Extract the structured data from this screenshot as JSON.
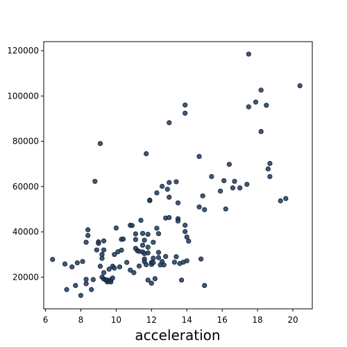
{
  "chart_data": {
    "type": "scatter",
    "title": "",
    "xlabel": "acceleration",
    "ylabel": "",
    "xlim": [
      5.9,
      21.1
    ],
    "ylim": [
      6000,
      124000
    ],
    "x_ticks": [
      6,
      8,
      10,
      12,
      14,
      16,
      18,
      20
    ],
    "y_ticks": [
      20000,
      40000,
      60000,
      80000,
      100000,
      120000
    ],
    "grid": false,
    "legend": "none",
    "marker_color": "#1f3b5e",
    "marker_edge_color": "#0f1f33",
    "series": [
      {
        "points": [
          [
            6.4,
            27800
          ],
          [
            7.1,
            25800
          ],
          [
            7.2,
            14500
          ],
          [
            7.5,
            24500
          ],
          [
            7.7,
            16300
          ],
          [
            7.8,
            26300
          ],
          [
            8.0,
            11900
          ],
          [
            8.1,
            26900
          ],
          [
            8.3,
            35400
          ],
          [
            8.4,
            38400
          ],
          [
            8.4,
            40900
          ],
          [
            8.3,
            19000
          ],
          [
            8.3,
            17100
          ],
          [
            8.6,
            14500
          ],
          [
            8.7,
            18900
          ],
          [
            8.8,
            62300
          ],
          [
            8.9,
            32000
          ],
          [
            9.0,
            35600
          ],
          [
            9.1,
            79000
          ],
          [
            9.0,
            34900
          ],
          [
            9.2,
            30000
          ],
          [
            9.1,
            24800
          ],
          [
            9.2,
            28300
          ],
          [
            9.3,
            36000
          ],
          [
            9.3,
            32000
          ],
          [
            9.2,
            20000
          ],
          [
            9.3,
            22000
          ],
          [
            9.3,
            19200
          ],
          [
            9.4,
            18800
          ],
          [
            9.5,
            17900
          ],
          [
            9.5,
            18700
          ],
          [
            9.6,
            23500
          ],
          [
            9.6,
            18200
          ],
          [
            9.7,
            17900
          ],
          [
            9.7,
            18800
          ],
          [
            9.8,
            19600
          ],
          [
            9.8,
            24800
          ],
          [
            9.9,
            24000
          ],
          [
            9.9,
            30000
          ],
          [
            10.0,
            41700
          ],
          [
            10.1,
            31200
          ],
          [
            10.2,
            24500
          ],
          [
            10.3,
            31900
          ],
          [
            10.3,
            36700
          ],
          [
            10.4,
            36800
          ],
          [
            10.6,
            26500
          ],
          [
            10.8,
            23100
          ],
          [
            10.8,
            42900
          ],
          [
            10.9,
            42800
          ],
          [
            11.0,
            22000
          ],
          [
            11.1,
            39100
          ],
          [
            11.1,
            36600
          ],
          [
            11.1,
            32700
          ],
          [
            11.2,
            31700
          ],
          [
            11.3,
            31400
          ],
          [
            11.3,
            24900
          ],
          [
            11.4,
            45100
          ],
          [
            11.5,
            39300
          ],
          [
            11.5,
            34100
          ],
          [
            11.5,
            31100
          ],
          [
            11.6,
            36300
          ],
          [
            11.6,
            30400
          ],
          [
            11.6,
            28000
          ],
          [
            11.6,
            26800
          ],
          [
            11.7,
            74500
          ],
          [
            11.7,
            25500
          ],
          [
            11.8,
            30700
          ],
          [
            11.8,
            38900
          ],
          [
            11.8,
            33200
          ],
          [
            11.8,
            18700
          ],
          [
            11.9,
            54000
          ],
          [
            11.9,
            53800
          ],
          [
            12.0,
            26500
          ],
          [
            12.0,
            25600
          ],
          [
            12.0,
            17300
          ],
          [
            12.1,
            35400
          ],
          [
            12.1,
            26400
          ],
          [
            12.1,
            28400
          ],
          [
            12.2,
            19300
          ],
          [
            12.3,
            57200
          ],
          [
            12.3,
            41600
          ],
          [
            12.4,
            30900
          ],
          [
            12.4,
            39200
          ],
          [
            12.4,
            28600
          ],
          [
            12.5,
            25400
          ],
          [
            12.6,
            60100
          ],
          [
            12.6,
            26900
          ],
          [
            12.7,
            25400
          ],
          [
            12.8,
            46100
          ],
          [
            12.8,
            29100
          ],
          [
            12.9,
            58800
          ],
          [
            13.0,
            46300
          ],
          [
            13.0,
            61800
          ],
          [
            13.0,
            88200
          ],
          [
            13.0,
            55300
          ],
          [
            13.3,
            26600
          ],
          [
            13.4,
            62100
          ],
          [
            13.4,
            29000
          ],
          [
            13.5,
            45800
          ],
          [
            13.5,
            52800
          ],
          [
            13.5,
            44800
          ],
          [
            13.6,
            26000
          ],
          [
            13.7,
            18700
          ],
          [
            13.8,
            26600
          ],
          [
            13.9,
            96000
          ],
          [
            13.9,
            92400
          ],
          [
            13.9,
            42900
          ],
          [
            13.9,
            40100
          ],
          [
            14.0,
            27200
          ],
          [
            14.0,
            37700
          ],
          [
            14.1,
            35900
          ],
          [
            14.7,
            73300
          ],
          [
            14.7,
            51000
          ],
          [
            14.8,
            28000
          ],
          [
            14.9,
            55900
          ],
          [
            15.0,
            49800
          ],
          [
            15.0,
            16300
          ],
          [
            15.4,
            64400
          ],
          [
            15.9,
            58000
          ],
          [
            16.1,
            62600
          ],
          [
            16.2,
            50100
          ],
          [
            16.4,
            69800
          ],
          [
            16.6,
            59400
          ],
          [
            16.7,
            62300
          ],
          [
            17.0,
            59400
          ],
          [
            17.4,
            61000
          ],
          [
            17.5,
            95200
          ],
          [
            17.5,
            118500
          ],
          [
            17.9,
            97300
          ],
          [
            18.2,
            102600
          ],
          [
            18.2,
            84300
          ],
          [
            18.5,
            95900
          ],
          [
            18.6,
            67800
          ],
          [
            18.7,
            70200
          ],
          [
            18.7,
            64400
          ],
          [
            19.3,
            53700
          ],
          [
            19.6,
            54700
          ],
          [
            20.4,
            104500
          ]
        ]
      }
    ]
  }
}
